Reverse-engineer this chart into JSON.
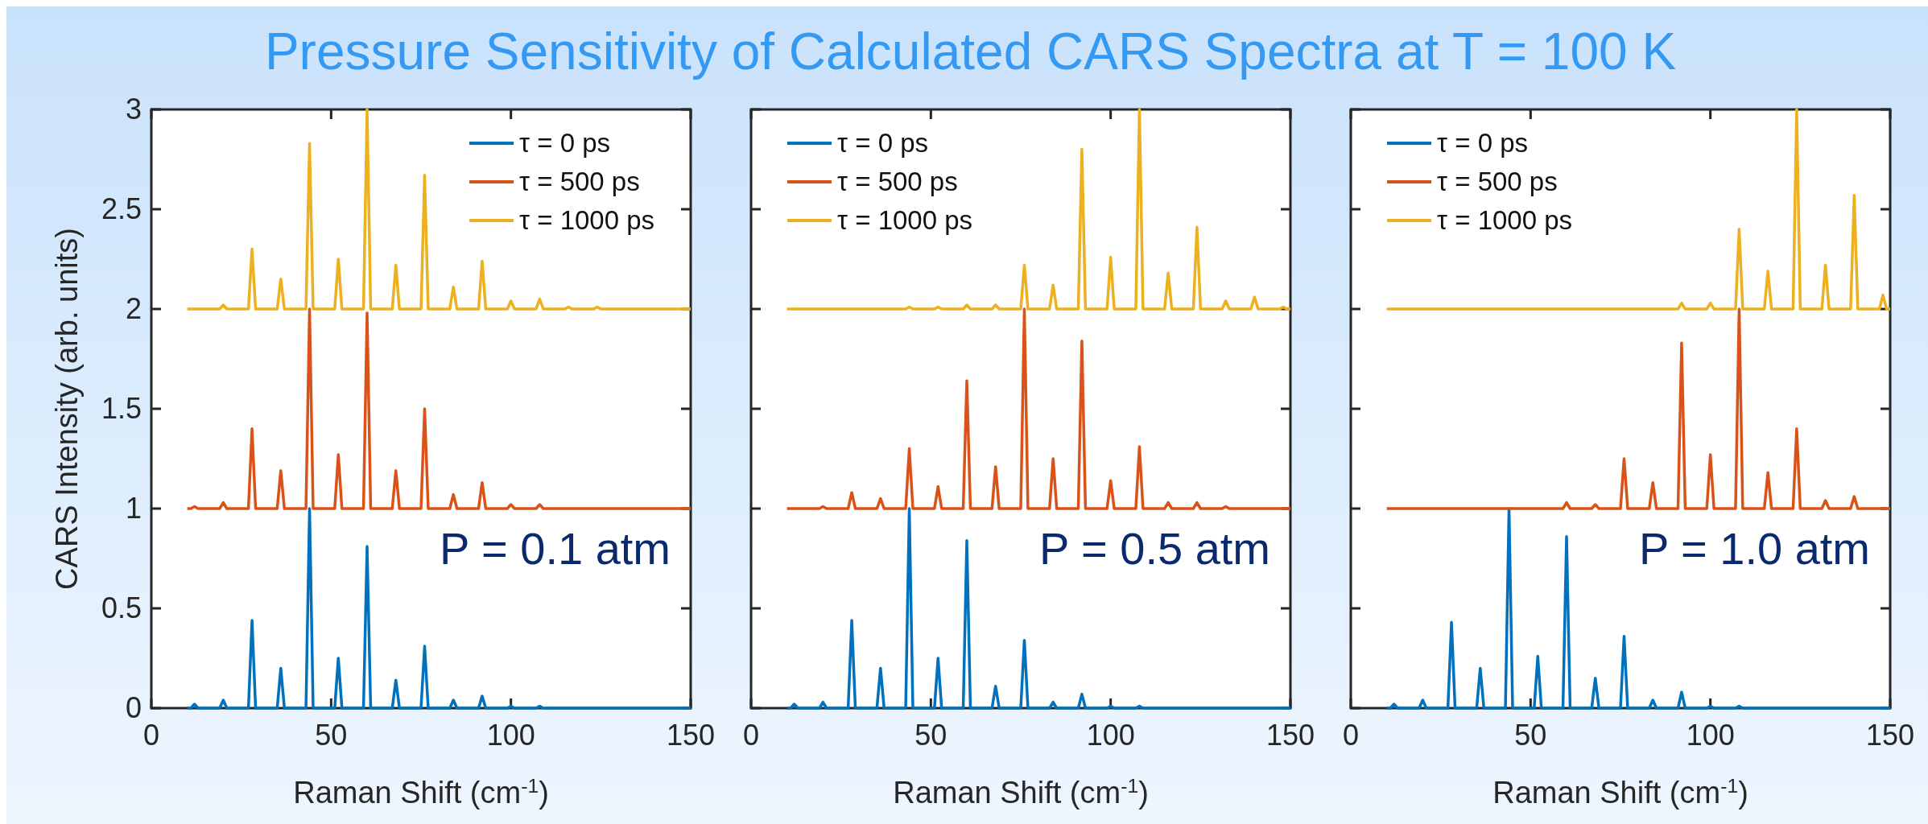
{
  "chart_data": [
    {
      "type": "line",
      "title": "Pressure Sensitivity of Calculated CARS Spectra at T = 100 K",
      "xlabel": "Raman Shift (cm$^{-1}$)",
      "ylabel": "CARS Intensity (arb. units)",
      "annotations": [
        "P = 0.1 atm"
      ],
      "legend": "top right",
      "xlim": [
        0,
        150
      ],
      "xticks": [
        0,
        50,
        100,
        150
      ],
      "ylim": [
        0,
        3
      ],
      "yticks": [
        0,
        0.5,
        1,
        1.5,
        2,
        2.5,
        3
      ],
      "x": [
        10,
        11,
        12,
        13,
        19,
        20,
        21,
        27,
        28,
        29,
        35,
        36,
        37,
        43,
        44,
        45,
        51,
        52,
        53,
        59,
        60,
        61,
        67,
        68,
        69,
        75,
        76,
        77,
        83,
        84,
        85,
        91,
        92,
        93,
        99,
        100,
        101,
        107,
        108,
        109,
        115,
        116,
        117,
        123,
        124,
        125,
        131,
        132,
        133,
        139,
        140,
        141,
        147,
        148,
        149,
        150
      ],
      "series": [
        {
          "name": "τ = 0 ps",
          "color": "#0072bd",
          "values": [
            0,
            0,
            0.02,
            0,
            0,
            0.04,
            0,
            0,
            0.44,
            0,
            0,
            0.2,
            0,
            0,
            1,
            0,
            0,
            0.25,
            0,
            0,
            0.81,
            0,
            0,
            0.14,
            0,
            0,
            0.31,
            0,
            0,
            0.04,
            0,
            0,
            0.06,
            0,
            0,
            0.01,
            0,
            0,
            0.01,
            0,
            0,
            0,
            0,
            0,
            0,
            0,
            0,
            0,
            0,
            0,
            0,
            0,
            0,
            0,
            0,
            0
          ]
        },
        {
          "name": "τ = 500 ps",
          "color": "#d95319",
          "values": [
            1,
            1,
            1.01,
            1,
            1,
            1.03,
            1,
            1,
            1.4,
            1,
            1,
            1.19,
            1,
            1,
            2,
            1,
            1,
            1.27,
            1,
            1,
            1.98,
            1,
            1,
            1.19,
            1,
            1,
            1.5,
            1,
            1,
            1.07,
            1,
            1,
            1.13,
            1,
            1,
            1.02,
            1,
            1,
            1.02,
            1,
            1,
            1,
            1,
            1,
            1,
            1,
            1,
            1,
            1,
            1,
            1,
            1,
            1,
            1,
            1,
            1
          ]
        },
        {
          "name": "τ = 1000 ps",
          "color": "#edb120",
          "values": [
            2,
            2,
            2,
            2,
            2,
            2.02,
            2,
            2,
            2.3,
            2,
            2,
            2.15,
            2,
            2,
            2.83,
            2,
            2,
            2.25,
            2,
            2,
            3,
            2,
            2,
            2.22,
            2,
            2,
            2.67,
            2,
            2,
            2.11,
            2,
            2,
            2.24,
            2,
            2,
            2.04,
            2,
            2,
            2.05,
            2,
            2,
            2.01,
            2,
            2,
            2.01,
            2,
            2,
            2,
            2,
            2,
            2,
            2,
            2,
            2,
            2,
            2
          ]
        }
      ]
    },
    {
      "type": "line",
      "xlabel": "Raman Shift (cm$^{-1}$)",
      "annotations": [
        "P = 0.5 atm"
      ],
      "legend": "top left",
      "tick_labels": "x",
      "xlim": [
        0,
        150
      ],
      "xticks": [
        0,
        50,
        100,
        150
      ],
      "ylim": [
        0,
        3
      ],
      "yticks": [
        0,
        0.5,
        1,
        1.5,
        2,
        2.5,
        3
      ],
      "x": [
        10,
        11,
        12,
        13,
        19,
        20,
        21,
        27,
        28,
        29,
        35,
        36,
        37,
        43,
        44,
        45,
        51,
        52,
        53,
        59,
        60,
        61,
        67,
        68,
        69,
        75,
        76,
        77,
        83,
        84,
        85,
        91,
        92,
        93,
        99,
        100,
        101,
        107,
        108,
        109,
        115,
        116,
        117,
        123,
        124,
        125,
        131,
        132,
        133,
        139,
        140,
        141,
        147,
        148,
        149,
        150
      ],
      "series": [
        {
          "name": "τ = 0 ps",
          "color": "#0072bd",
          "values": [
            0,
            0,
            0.02,
            0,
            0,
            0.03,
            0,
            0,
            0.44,
            0,
            0,
            0.2,
            0,
            0,
            1,
            0,
            0,
            0.25,
            0,
            0,
            0.84,
            0,
            0,
            0.11,
            0,
            0,
            0.34,
            0,
            0,
            0.03,
            0,
            0,
            0.07,
            0,
            0,
            0.01,
            0,
            0,
            0.01,
            0,
            0,
            0,
            0,
            0,
            0,
            0,
            0,
            0,
            0,
            0,
            0,
            0,
            0,
            0,
            0,
            0
          ]
        },
        {
          "name": "τ = 500 ps",
          "color": "#d95319",
          "values": [
            1,
            1,
            1,
            1,
            1,
            1.01,
            1,
            1,
            1.08,
            1,
            1,
            1.05,
            1,
            1,
            1.3,
            1,
            1,
            1.11,
            1,
            1,
            1.64,
            1,
            1,
            1.21,
            1,
            1,
            2,
            1,
            1,
            1.25,
            1,
            1,
            1.84,
            1,
            1,
            1.14,
            1,
            1,
            1.31,
            1,
            1,
            1.03,
            1,
            1,
            1.03,
            1,
            1,
            1.01,
            1,
            1,
            1,
            1,
            1,
            1,
            1,
            1
          ]
        },
        {
          "name": "τ = 1000 ps",
          "color": "#edb120",
          "values": [
            2,
            2,
            2,
            2,
            2,
            2,
            2,
            2,
            2,
            2,
            2,
            2,
            2,
            2,
            2.01,
            2,
            2,
            2.01,
            2,
            2,
            2.02,
            2,
            2,
            2.02,
            2,
            2,
            2.22,
            2,
            2,
            2.12,
            2,
            2,
            2.8,
            2,
            2,
            2.26,
            2,
            2,
            3,
            2,
            2,
            2.18,
            2,
            2,
            2.41,
            2,
            2,
            2.04,
            2,
            2,
            2.06,
            2,
            2,
            2.01,
            2,
            2
          ]
        }
      ]
    },
    {
      "type": "line",
      "xlabel": "Raman Shift (cm$^{-1}$)",
      "annotations": [
        "P = 1.0 atm"
      ],
      "legend": "top left",
      "tick_labels": "x",
      "xlim": [
        0,
        150
      ],
      "xticks": [
        0,
        50,
        100,
        150
      ],
      "ylim": [
        0,
        3
      ],
      "yticks": [
        0,
        0.5,
        1,
        1.5,
        2,
        2.5,
        3
      ],
      "x": [
        10,
        11,
        12,
        13,
        19,
        20,
        21,
        27,
        28,
        29,
        35,
        36,
        37,
        43,
        44,
        45,
        51,
        52,
        53,
        59,
        60,
        61,
        67,
        68,
        69,
        75,
        76,
        77,
        83,
        84,
        85,
        91,
        92,
        93,
        99,
        100,
        101,
        107,
        108,
        109,
        115,
        116,
        117,
        123,
        124,
        125,
        131,
        132,
        133,
        139,
        140,
        141,
        147,
        148,
        149,
        150
      ],
      "series": [
        {
          "name": "τ = 0 ps",
          "color": "#0072bd",
          "values": [
            0,
            0,
            0.02,
            0,
            0,
            0.04,
            0,
            0,
            0.43,
            0,
            0,
            0.2,
            0,
            0,
            1,
            0,
            0,
            0.26,
            0,
            0,
            0.86,
            0,
            0,
            0.15,
            0,
            0,
            0.36,
            0,
            0,
            0.04,
            0,
            0,
            0.08,
            0,
            0,
            0.01,
            0,
            0,
            0.01,
            0,
            0,
            0,
            0,
            0,
            0,
            0,
            0,
            0,
            0,
            0,
            0,
            0,
            0,
            0,
            0,
            0
          ]
        },
        {
          "name": "τ = 500 ps",
          "color": "#d95319",
          "values": [
            1,
            1,
            1,
            1,
            1,
            1,
            1,
            1,
            1,
            1,
            1,
            1,
            1,
            1,
            1,
            1,
            1,
            1,
            1,
            1,
            1.03,
            1,
            1,
            1.02,
            1,
            1,
            1.25,
            1,
            1,
            1.13,
            1,
            1,
            1.83,
            1,
            1,
            1.27,
            1,
            1,
            2,
            1,
            1,
            1.18,
            1,
            1,
            1.4,
            1,
            1,
            1.04,
            1,
            1,
            1.06,
            1,
            1,
            1,
            1,
            1
          ]
        },
        {
          "name": "τ = 1000 ps",
          "color": "#edb120",
          "values": [
            2,
            2,
            2,
            2,
            2,
            2,
            2,
            2,
            2,
            2,
            2,
            2,
            2,
            2,
            2,
            2,
            2,
            2,
            2,
            2,
            2,
            2,
            2,
            2,
            2,
            2,
            2,
            2,
            2,
            2,
            2,
            2,
            2.03,
            2,
            2,
            2.03,
            2,
            2,
            2.4,
            2,
            2,
            2.19,
            2,
            2,
            3,
            2,
            2,
            2.22,
            2,
            2,
            2.57,
            2,
            2,
            2.07,
            2,
            2
          ]
        }
      ]
    }
  ]
}
